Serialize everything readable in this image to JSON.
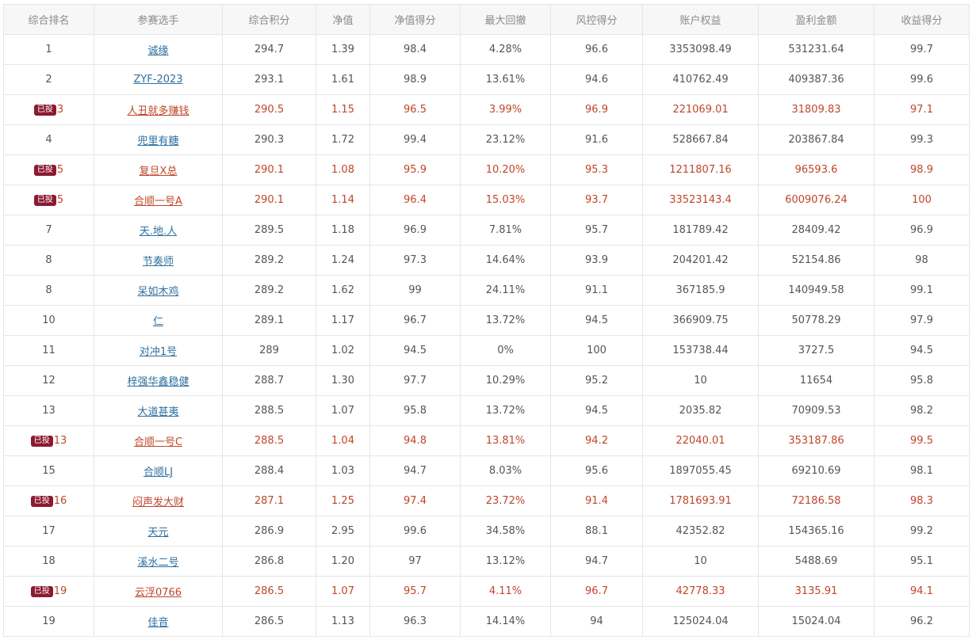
{
  "colors": {
    "header_bg": "#f7f7f7",
    "header_text": "#8a8a8a",
    "link_normal": "#2f6f9f",
    "highlight_text": "#c0462a",
    "badge_bg": "#8b1a30"
  },
  "table": {
    "headers": [
      "综合排名",
      "参赛选手",
      "综合积分",
      "净值",
      "净值得分",
      "最大回撤",
      "风控得分",
      "账户权益",
      "盈利金额",
      "收益得分"
    ],
    "invested_badge": "已投",
    "rows": [
      {
        "rank": "1",
        "invested": false,
        "player": "诚缘",
        "score": "294.7",
        "nav": "1.39",
        "nav_score": "98.4",
        "max_drawdown": "4.28%",
        "risk_score": "96.6",
        "equity": "3353098.49",
        "profit": "531231.64",
        "return_score": "99.7"
      },
      {
        "rank": "2",
        "invested": false,
        "player": "ZYF-2023",
        "score": "293.1",
        "nav": "1.61",
        "nav_score": "98.9",
        "max_drawdown": "13.61%",
        "risk_score": "94.6",
        "equity": "410762.49",
        "profit": "409387.36",
        "return_score": "99.6"
      },
      {
        "rank": "3",
        "invested": true,
        "player": "人丑就多赚钱",
        "score": "290.5",
        "nav": "1.15",
        "nav_score": "96.5",
        "max_drawdown": "3.99%",
        "risk_score": "96.9",
        "equity": "221069.01",
        "profit": "31809.83",
        "return_score": "97.1"
      },
      {
        "rank": "4",
        "invested": false,
        "player": "兜里有糖",
        "score": "290.3",
        "nav": "1.72",
        "nav_score": "99.4",
        "max_drawdown": "23.12%",
        "risk_score": "91.6",
        "equity": "528667.84",
        "profit": "203867.84",
        "return_score": "99.3"
      },
      {
        "rank": "5",
        "invested": true,
        "player": "复旦X总",
        "score": "290.1",
        "nav": "1.08",
        "nav_score": "95.9",
        "max_drawdown": "10.20%",
        "risk_score": "95.3",
        "equity": "1211807.16",
        "profit": "96593.6",
        "return_score": "98.9"
      },
      {
        "rank": "5",
        "invested": true,
        "player": "合顺一号A",
        "score": "290.1",
        "nav": "1.14",
        "nav_score": "96.4",
        "max_drawdown": "15.03%",
        "risk_score": "93.7",
        "equity": "33523143.4",
        "profit": "6009076.24",
        "return_score": "100"
      },
      {
        "rank": "7",
        "invested": false,
        "player": "天.地.人",
        "score": "289.5",
        "nav": "1.18",
        "nav_score": "96.9",
        "max_drawdown": "7.81%",
        "risk_score": "95.7",
        "equity": "181789.42",
        "profit": "28409.42",
        "return_score": "96.9"
      },
      {
        "rank": "8",
        "invested": false,
        "player": "节奏师",
        "score": "289.2",
        "nav": "1.24",
        "nav_score": "97.3",
        "max_drawdown": "14.64%",
        "risk_score": "93.9",
        "equity": "204201.42",
        "profit": "52154.86",
        "return_score": "98"
      },
      {
        "rank": "8",
        "invested": false,
        "player": "呆如木鸡",
        "score": "289.2",
        "nav": "1.62",
        "nav_score": "99",
        "max_drawdown": "24.11%",
        "risk_score": "91.1",
        "equity": "367185.9",
        "profit": "140949.58",
        "return_score": "99.1"
      },
      {
        "rank": "10",
        "invested": false,
        "player": "仁",
        "score": "289.1",
        "nav": "1.17",
        "nav_score": "96.7",
        "max_drawdown": "13.72%",
        "risk_score": "94.5",
        "equity": "366909.75",
        "profit": "50778.29",
        "return_score": "97.9"
      },
      {
        "rank": "11",
        "invested": false,
        "player": "对冲1号",
        "score": "289",
        "nav": "1.02",
        "nav_score": "94.5",
        "max_drawdown": "0%",
        "risk_score": "100",
        "equity": "153738.44",
        "profit": "3727.5",
        "return_score": "94.5"
      },
      {
        "rank": "12",
        "invested": false,
        "player": "梓强华鑫稳健",
        "score": "288.7",
        "nav": "1.30",
        "nav_score": "97.7",
        "max_drawdown": "10.29%",
        "risk_score": "95.2",
        "equity": "10",
        "profit": "11654",
        "return_score": "95.8"
      },
      {
        "rank": "13",
        "invested": false,
        "player": "大道甚夷",
        "score": "288.5",
        "nav": "1.07",
        "nav_score": "95.8",
        "max_drawdown": "13.72%",
        "risk_score": "94.5",
        "equity": "2035.82",
        "profit": "70909.53",
        "return_score": "98.2"
      },
      {
        "rank": "13",
        "invested": true,
        "player": "合顺一号C",
        "score": "288.5",
        "nav": "1.04",
        "nav_score": "94.8",
        "max_drawdown": "13.81%",
        "risk_score": "94.2",
        "equity": "22040.01",
        "profit": "353187.86",
        "return_score": "99.5"
      },
      {
        "rank": "15",
        "invested": false,
        "player": "合顺LJ",
        "score": "288.4",
        "nav": "1.03",
        "nav_score": "94.7",
        "max_drawdown": "8.03%",
        "risk_score": "95.6",
        "equity": "1897055.45",
        "profit": "69210.69",
        "return_score": "98.1"
      },
      {
        "rank": "16",
        "invested": true,
        "player": "闷声发大财",
        "score": "287.1",
        "nav": "1.25",
        "nav_score": "97.4",
        "max_drawdown": "23.72%",
        "risk_score": "91.4",
        "equity": "1781693.91",
        "profit": "72186.58",
        "return_score": "98.3"
      },
      {
        "rank": "17",
        "invested": false,
        "player": "天元",
        "score": "286.9",
        "nav": "2.95",
        "nav_score": "99.6",
        "max_drawdown": "34.58%",
        "risk_score": "88.1",
        "equity": "42352.82",
        "profit": "154365.16",
        "return_score": "99.2"
      },
      {
        "rank": "18",
        "invested": false,
        "player": "溪水二号",
        "score": "286.8",
        "nav": "1.20",
        "nav_score": "97",
        "max_drawdown": "13.12%",
        "risk_score": "94.7",
        "equity": "10",
        "profit": "5488.69",
        "return_score": "95.1"
      },
      {
        "rank": "19",
        "invested": true,
        "player": "云浮0766",
        "score": "286.5",
        "nav": "1.07",
        "nav_score": "95.7",
        "max_drawdown": "4.11%",
        "risk_score": "96.7",
        "equity": "42778.33",
        "profit": "3135.91",
        "return_score": "94.1"
      },
      {
        "rank": "19",
        "invested": false,
        "player": "佳音",
        "score": "286.5",
        "nav": "1.13",
        "nav_score": "96.3",
        "max_drawdown": "14.14%",
        "risk_score": "94",
        "equity": "125024.04",
        "profit": "15024.04",
        "return_score": "96.2"
      }
    ]
  }
}
